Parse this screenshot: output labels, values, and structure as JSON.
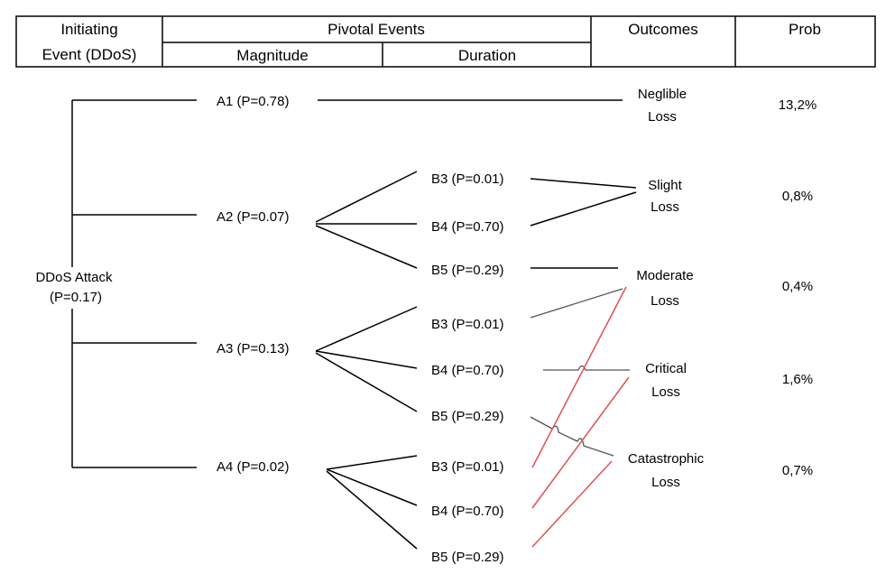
{
  "header": {
    "initiating_line1": "Initiating",
    "initiating_line2": "Event (DDoS)",
    "pivotal": "Pivotal Events",
    "magnitude": "Magnitude",
    "duration": "Duration",
    "outcomes": "Outcomes",
    "prob": "Prob"
  },
  "root": {
    "line1": "DDoS Attack",
    "line2": "(P=0.17)"
  },
  "magnitude_nodes": {
    "a1": "A1 (P=0.78)",
    "a2": "A2 (P=0.07)",
    "a3": "A3 (P=0.13)",
    "a4": "A4 (P=0.02)"
  },
  "duration_nodes": {
    "a2_b3": "B3 (P=0.01)",
    "a2_b4": "B4 (P=0.70)",
    "a2_b5": "B5 (P=0.29)",
    "a3_b3": "B3 (P=0.01)",
    "a3_b4": "B4 (P=0.70)",
    "a3_b5": "B5 (P=0.29)",
    "a4_b3": "B3 (P=0.01)",
    "a4_b4": "B4 (P=0.70)",
    "a4_b5": "B5 (P=0.29)"
  },
  "outcomes": {
    "negligible": [
      "Neglible",
      "Loss"
    ],
    "slight": [
      "Slight",
      "Loss"
    ],
    "moderate": [
      "Moderate",
      "Loss"
    ],
    "critical": [
      "Critical",
      "Loss"
    ],
    "catastrophic": [
      "Catastrophic",
      "Loss"
    ]
  },
  "probabilities": {
    "negligible": "13,2%",
    "slight": "0,8%",
    "moderate": "0,4%",
    "critical": "1,6%",
    "catastrophic": "0,7%"
  },
  "colors": {
    "line": "#000000",
    "grey_line": "#555555",
    "red_line": "#e05050"
  }
}
